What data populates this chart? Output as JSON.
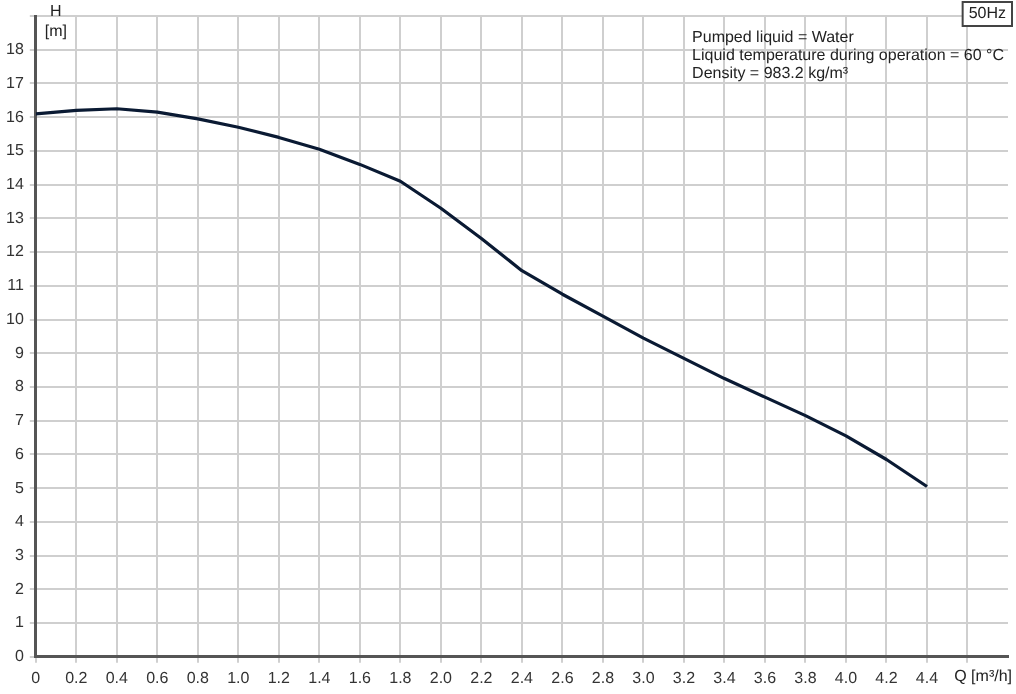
{
  "chart_data": {
    "type": "line",
    "title": "50Hz",
    "xlabel": "Q [m³/h]",
    "ylabel": "H [m]",
    "annotations": [
      "Pumped liquid = Water",
      "Liquid temperature during operation = 60 °C",
      "Density = 983.2 kg/m³"
    ],
    "x": [
      0,
      0.2,
      0.4,
      0.6,
      0.8,
      1.0,
      1.2,
      1.4,
      1.6,
      1.8,
      2.0,
      2.2,
      2.4,
      2.6,
      2.8,
      3.0,
      3.2,
      3.4,
      3.6,
      3.8,
      4.0,
      4.2,
      4.4
    ],
    "series": [
      {
        "color": "#0a1a33",
        "values": [
          16.1,
          16.2,
          16.25,
          16.15,
          15.95,
          15.7,
          15.4,
          15.05,
          14.6,
          14.1,
          13.3,
          12.4,
          11.45,
          10.75,
          10.1,
          9.45,
          8.85,
          8.25,
          7.7,
          7.15,
          6.55,
          5.85,
          5.05
        ]
      }
    ],
    "xlim": [
      0,
      4.8
    ],
    "xticks": [
      0,
      0.2,
      0.4,
      0.6,
      0.8,
      {
        "value": 1,
        "label": "1.0"
      },
      1.2,
      1.4,
      1.6,
      1.8,
      {
        "value": 2,
        "label": "2.0"
      },
      2.2,
      2.4,
      2.6,
      2.8,
      {
        "value": 3,
        "label": "3.0"
      },
      3.2,
      3.4,
      3.6,
      3.8,
      {
        "value": 4,
        "label": "4.0"
      },
      4.2,
      4.4,
      {
        "value": 4.6,
        "label": null
      }
    ],
    "ylim": [
      0,
      19
    ],
    "yticks": [
      0,
      1,
      2,
      3,
      4,
      5,
      6,
      7,
      8,
      9,
      10,
      11,
      12,
      13,
      14,
      15,
      16,
      17,
      18,
      {
        "value": 19,
        "label": null
      }
    ],
    "grid": true,
    "legend": false,
    "marker": "none",
    "line_style": "solid"
  }
}
